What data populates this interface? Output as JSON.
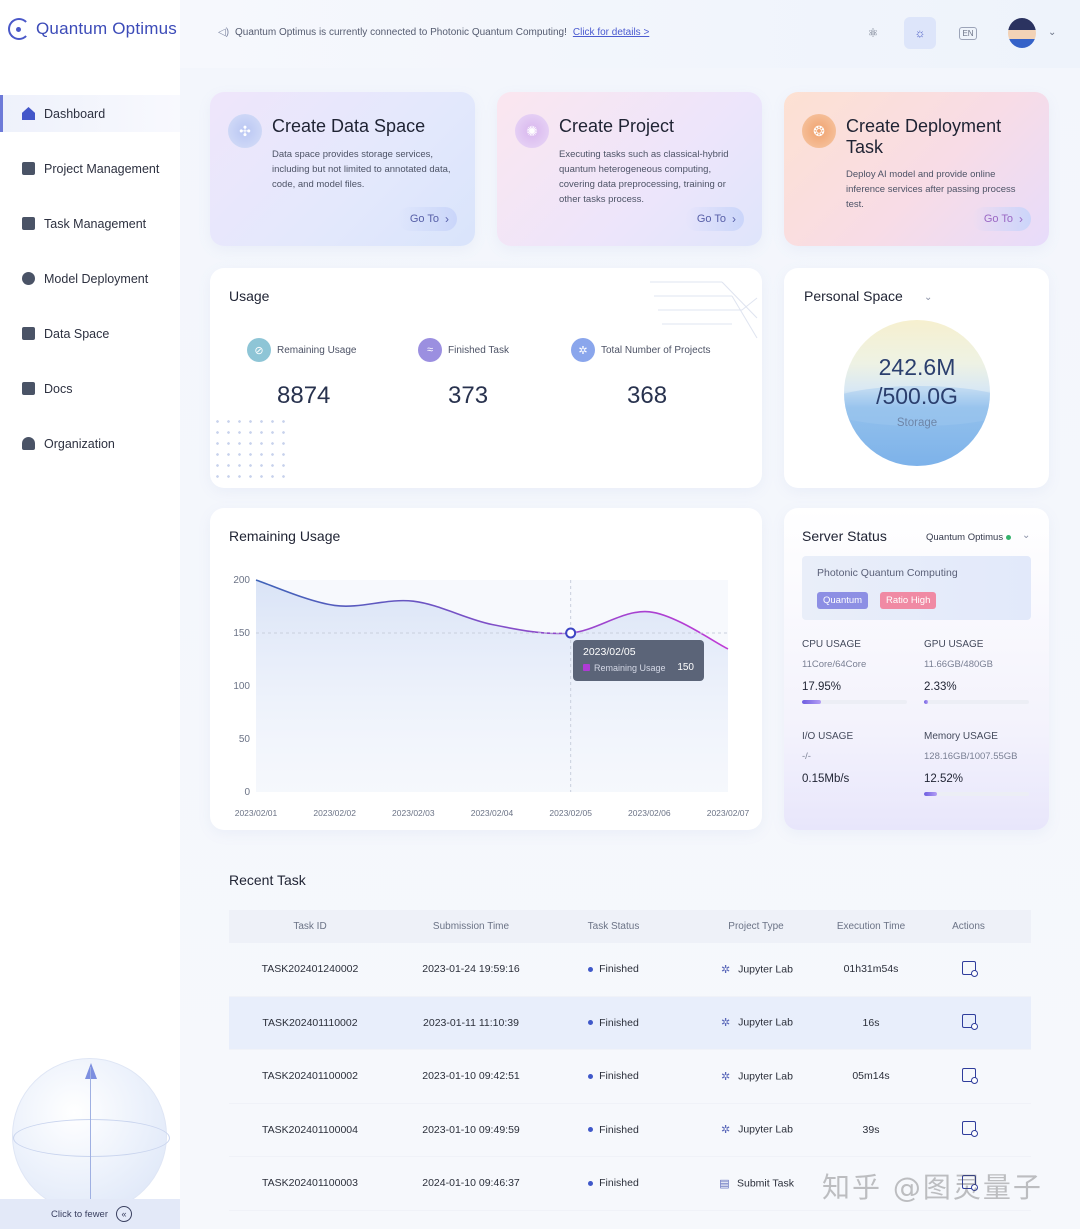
{
  "app": {
    "name": "Quantum Optimus"
  },
  "sidebar": {
    "items": [
      {
        "label": "Dashboard",
        "icon": "home-icon",
        "active": true
      },
      {
        "label": "Project Management",
        "icon": "folder-icon"
      },
      {
        "label": "Task Management",
        "icon": "task-icon"
      },
      {
        "label": "Model Deployment",
        "icon": "chart-pie-icon"
      },
      {
        "label": "Data Space",
        "icon": "cube-icon"
      },
      {
        "label": "Docs",
        "icon": "book-icon"
      },
      {
        "label": "Organization",
        "icon": "users-icon"
      }
    ],
    "collapse_label": "Click to fewer"
  },
  "header": {
    "notice": "Quantum Optimus is currently connected to Photonic Quantum Computing!",
    "notice_link": "Click for details >",
    "lang": "EN"
  },
  "cards": [
    {
      "title": "Create Data Space",
      "desc": "Data space provides storage services, including but not limited to annotated data, code, and model files.",
      "button": "Go To"
    },
    {
      "title": "Create Project",
      "desc": "Executing tasks such as classical-hybrid quantum heterogeneous computing, covering data preprocessing, training or other tasks process.",
      "button": "Go To"
    },
    {
      "title": "Create Deployment Task",
      "desc": "Deploy AI model and provide online inference services after passing process test.",
      "button": "Go To"
    }
  ],
  "usage": {
    "title": "Usage",
    "metrics": [
      {
        "label": "Remaining Usage",
        "value": "8874",
        "color": "#8ec5d6"
      },
      {
        "label": "Finished Task",
        "value": "373",
        "color": "#9b8fe0"
      },
      {
        "label": "Total Number of Projects",
        "value": "368",
        "color": "#8aa6ec"
      }
    ]
  },
  "personal": {
    "title": "Personal Space",
    "used": "242.6M",
    "total": "/500.0G",
    "label": "Storage"
  },
  "remaining_chart": {
    "title": "Remaining Usage",
    "tooltip": {
      "date": "2023/02/05",
      "series": "Remaining Usage",
      "value": "150"
    }
  },
  "chart_data": {
    "type": "line",
    "title": "Remaining Usage",
    "x": [
      "2023/02/01",
      "2023/02/02",
      "2023/02/03",
      "2023/02/04",
      "2023/02/05",
      "2023/02/06",
      "2023/02/07"
    ],
    "series": [
      {
        "name": "Remaining Usage",
        "values": [
          200,
          176,
          180,
          158,
          150,
          170,
          135
        ]
      }
    ],
    "ylim": [
      0,
      200
    ],
    "yticks": [
      0,
      50,
      100,
      150,
      200
    ],
    "highlight": {
      "x": "2023/02/05",
      "y": 150
    },
    "colors": {
      "start": "#3e63b8",
      "end": "#c03ad6"
    }
  },
  "server": {
    "title": "Server Status",
    "selector": "Quantum Optimus",
    "machine": "Photonic Quantum Computing",
    "tags": [
      "Quantum",
      "Ratio High"
    ],
    "stats": [
      {
        "label": "CPU USAGE",
        "sub": "11Core/64Core",
        "value": "17.95%",
        "fraction": 0.1795
      },
      {
        "label": "GPU USAGE",
        "sub": "11.66GB/480GB",
        "value": "2.33%",
        "fraction": 0.0233
      },
      {
        "label": "I/O USAGE",
        "sub": "-/-",
        "value": "0.15Mb/s",
        "fraction": null
      },
      {
        "label": "Memory USAGE",
        "sub": "128.16GB/1007.55GB",
        "value": "12.52%",
        "fraction": 0.1252
      }
    ]
  },
  "recent": {
    "title": "Recent Task",
    "columns": [
      "Task ID",
      "Submission Time",
      "Task Status",
      "Project Type",
      "Execution Time",
      "Actions"
    ],
    "rows": [
      {
        "id": "TASK202401240002",
        "time": "2023-01-24 19:59:16",
        "status": "Finished",
        "type": "Jupyter Lab",
        "exec": "01h31m54s"
      },
      {
        "id": "TASK202401110002",
        "time": "2023-01-11 11:10:39",
        "status": "Finished",
        "type": "Jupyter Lab",
        "exec": "16s"
      },
      {
        "id": "TASK202401100002",
        "time": "2023-01-10 09:42:51",
        "status": "Finished",
        "type": "Jupyter Lab",
        "exec": "05m14s"
      },
      {
        "id": "TASK202401100004",
        "time": "2023-01-10 09:49:59",
        "status": "Finished",
        "type": "Jupyter Lab",
        "exec": "39s"
      },
      {
        "id": "TASK202401100003",
        "time": "2024-01-10 09:46:37",
        "status": "Finished",
        "type": "Submit Task",
        "exec": ""
      }
    ]
  },
  "watermark": "知乎 @图灵量子"
}
